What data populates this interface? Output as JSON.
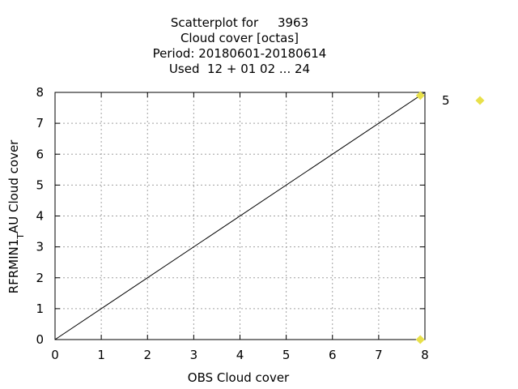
{
  "chart_data": {
    "type": "scatter",
    "title_lines": [
      "Scatterplot for     3963",
      "Cloud cover [octas]",
      "Period: 20180601-20180614",
      "Used  12 + 01 02 ... 24"
    ],
    "xlabel": "OBS Cloud cover",
    "ylabel": "RFRMIN1ᵀAU Cloud cover",
    "xlim": [
      0,
      8
    ],
    "ylim": [
      0,
      8
    ],
    "xticks": [
      0,
      1,
      2,
      3,
      4,
      5,
      6,
      7,
      8
    ],
    "yticks": [
      0,
      1,
      2,
      3,
      4,
      5,
      6,
      7,
      8
    ],
    "grid": true,
    "diagonal_line": true,
    "series": [
      {
        "name": "5",
        "color": "#e8e04a",
        "marker": "diamond",
        "points": [
          {
            "x": 7.9,
            "y": 7.9
          },
          {
            "x": 7.9,
            "y": 0.0
          }
        ]
      }
    ],
    "legend_placement": "top-right"
  }
}
